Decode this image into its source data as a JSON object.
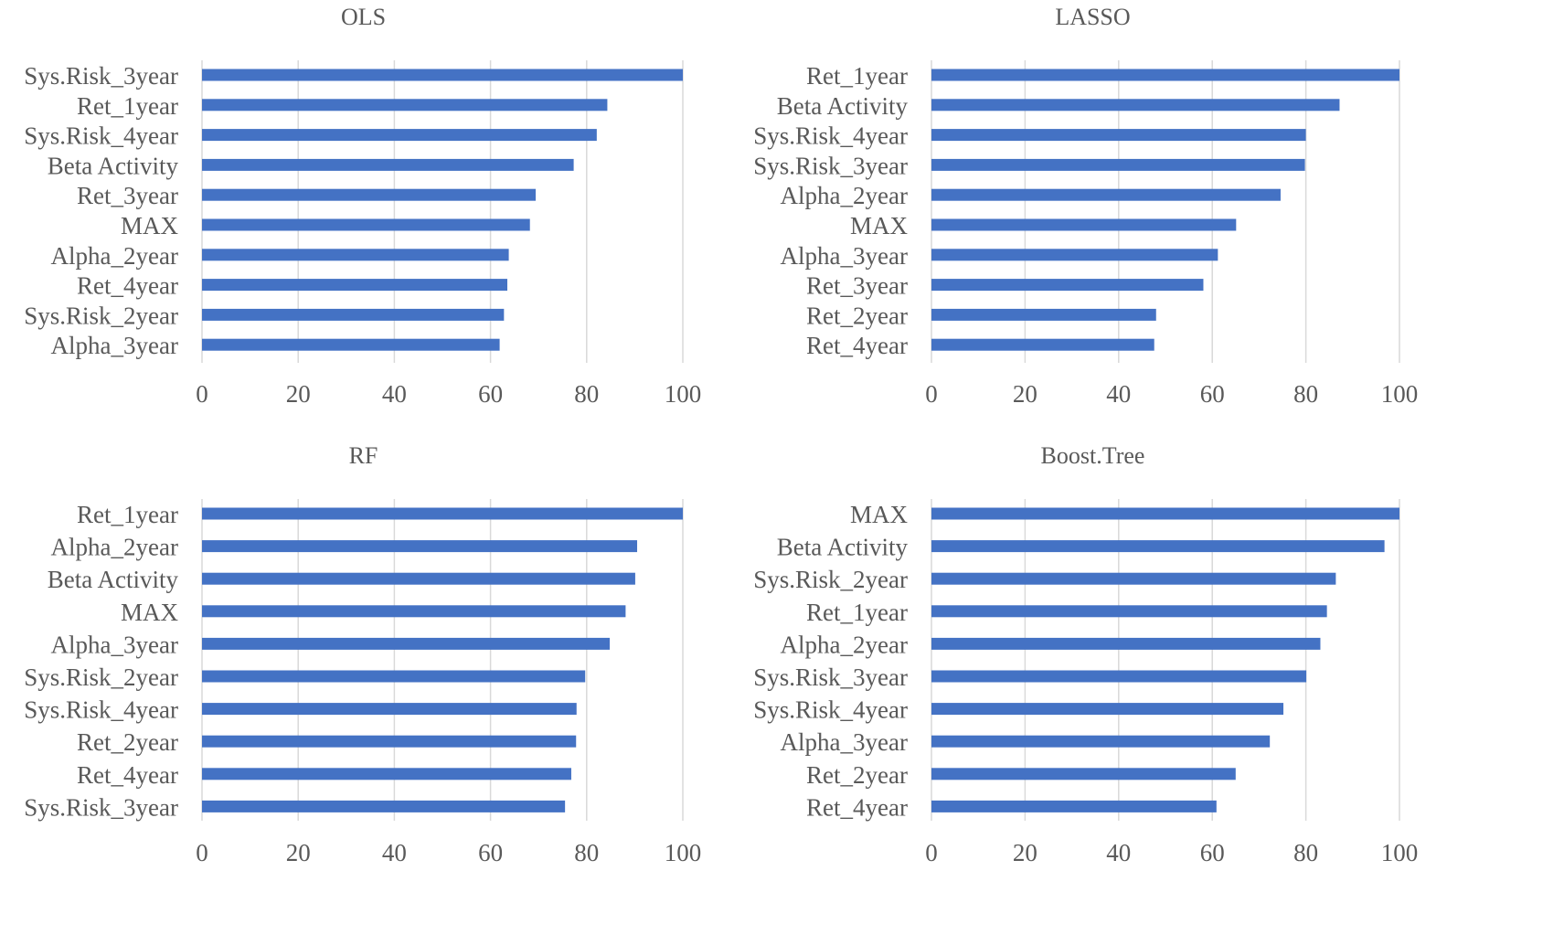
{
  "colors": {
    "bar": "#4472c4",
    "grid": "#d9d9d9",
    "text": "#595959"
  },
  "chart_data": [
    {
      "type": "bar",
      "orientation": "horizontal",
      "title": "OLS",
      "categories": [
        "Sys.Risk_3year",
        "Ret_1year",
        "Sys.Risk_4year",
        "Beta Activity",
        "Ret_3year",
        "MAX",
        "Alpha_2year",
        "Ret_4year",
        "Sys.Risk_2year",
        "Alpha_3year"
      ],
      "values": [
        100,
        84.3,
        82.1,
        77.3,
        69.4,
        68.2,
        63.8,
        63.5,
        62.8,
        61.9
      ],
      "xlim": [
        0,
        100
      ],
      "xticks": [
        0,
        20,
        40,
        60,
        80,
        100
      ],
      "grid": true
    },
    {
      "type": "bar",
      "orientation": "horizontal",
      "title": "LASSO",
      "categories": [
        "Ret_1year",
        "Beta Activity",
        "Sys.Risk_4year",
        "Sys.Risk_3year",
        "Alpha_2year",
        "MAX",
        "Alpha_3year",
        "Ret_3year",
        "Ret_2year",
        "Ret_4year"
      ],
      "values": [
        100,
        87.2,
        80.0,
        79.8,
        74.6,
        65.1,
        61.2,
        58.1,
        48.0,
        47.6
      ],
      "xlim": [
        0,
        100
      ],
      "xticks": [
        0,
        20,
        40,
        60,
        80,
        100
      ],
      "grid": true
    },
    {
      "type": "bar",
      "orientation": "horizontal",
      "title": "RF",
      "categories": [
        "Ret_1year",
        "Alpha_2year",
        "Beta Activity",
        "MAX",
        "Alpha_3year",
        "Sys.Risk_2year",
        "Sys.Risk_4year",
        "Ret_2year",
        "Ret_4year",
        "Sys.Risk_3year"
      ],
      "values": [
        100,
        90.5,
        90.1,
        88.1,
        84.8,
        79.7,
        77.9,
        77.8,
        76.8,
        75.5
      ],
      "xlim": [
        0,
        100
      ],
      "xticks": [
        0,
        20,
        40,
        60,
        80,
        100
      ],
      "grid": true
    },
    {
      "type": "bar",
      "orientation": "horizontal",
      "title": "Boost.Tree",
      "categories": [
        "MAX",
        "Beta Activity",
        "Sys.Risk_2year",
        "Ret_1year",
        "Alpha_2year",
        "Sys.Risk_3year",
        "Sys.Risk_4year",
        "Alpha_3year",
        "Ret_2year",
        "Ret_4year"
      ],
      "values": [
        100,
        96.8,
        86.4,
        84.5,
        83.1,
        80.1,
        75.2,
        72.3,
        65.0,
        60.9
      ],
      "xlim": [
        0,
        100
      ],
      "xticks": [
        0,
        20,
        40,
        60,
        80,
        100
      ],
      "grid": true
    }
  ]
}
